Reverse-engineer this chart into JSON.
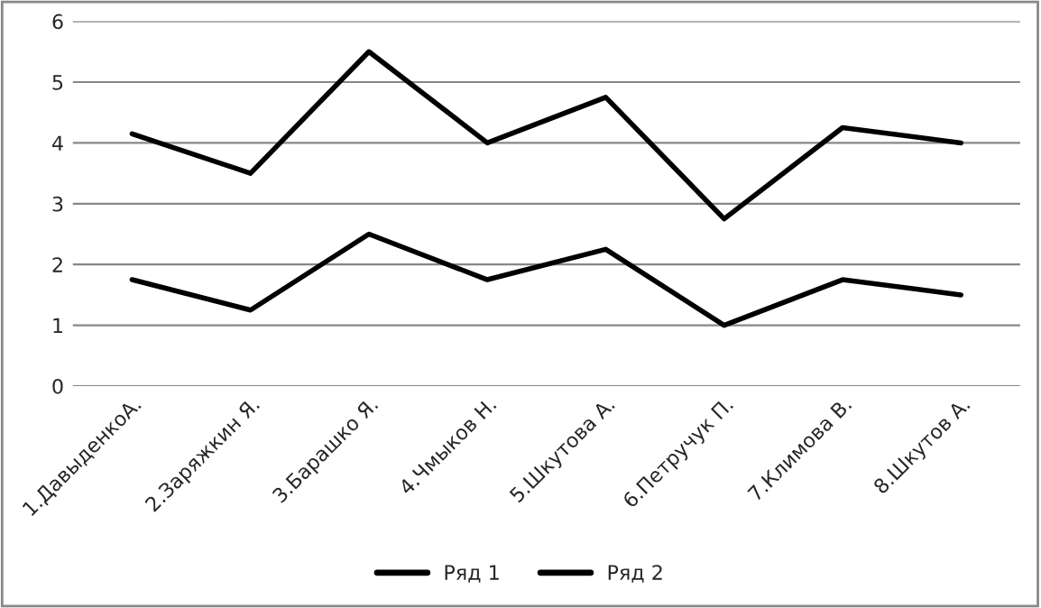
{
  "chart_data": {
    "type": "line",
    "categories": [
      "1.ДавыденкоА.",
      "2.Заряжкин Я.",
      "3.Барашко Я.",
      "4.Чмыков Н.",
      "5.Шкутова А.",
      "6.Петручук П.",
      "7.Климова В.",
      "8.Шкутов А."
    ],
    "series": [
      {
        "name": "Ряд 1",
        "color": "#000000",
        "values": [
          1.75,
          1.25,
          2.5,
          1.75,
          2.25,
          1,
          1.75,
          1.5
        ]
      },
      {
        "name": "Ряд 2",
        "color": "#000000",
        "values": [
          4.15,
          3.5,
          5.5,
          4,
          4.75,
          2.75,
          4.25,
          4
        ]
      }
    ],
    "ylim": [
      0,
      6
    ],
    "yticks": [
      0,
      1,
      2,
      3,
      4,
      5,
      6
    ],
    "grid": "y",
    "legend": "bottom",
    "marker": "none",
    "line_style": "solid"
  }
}
